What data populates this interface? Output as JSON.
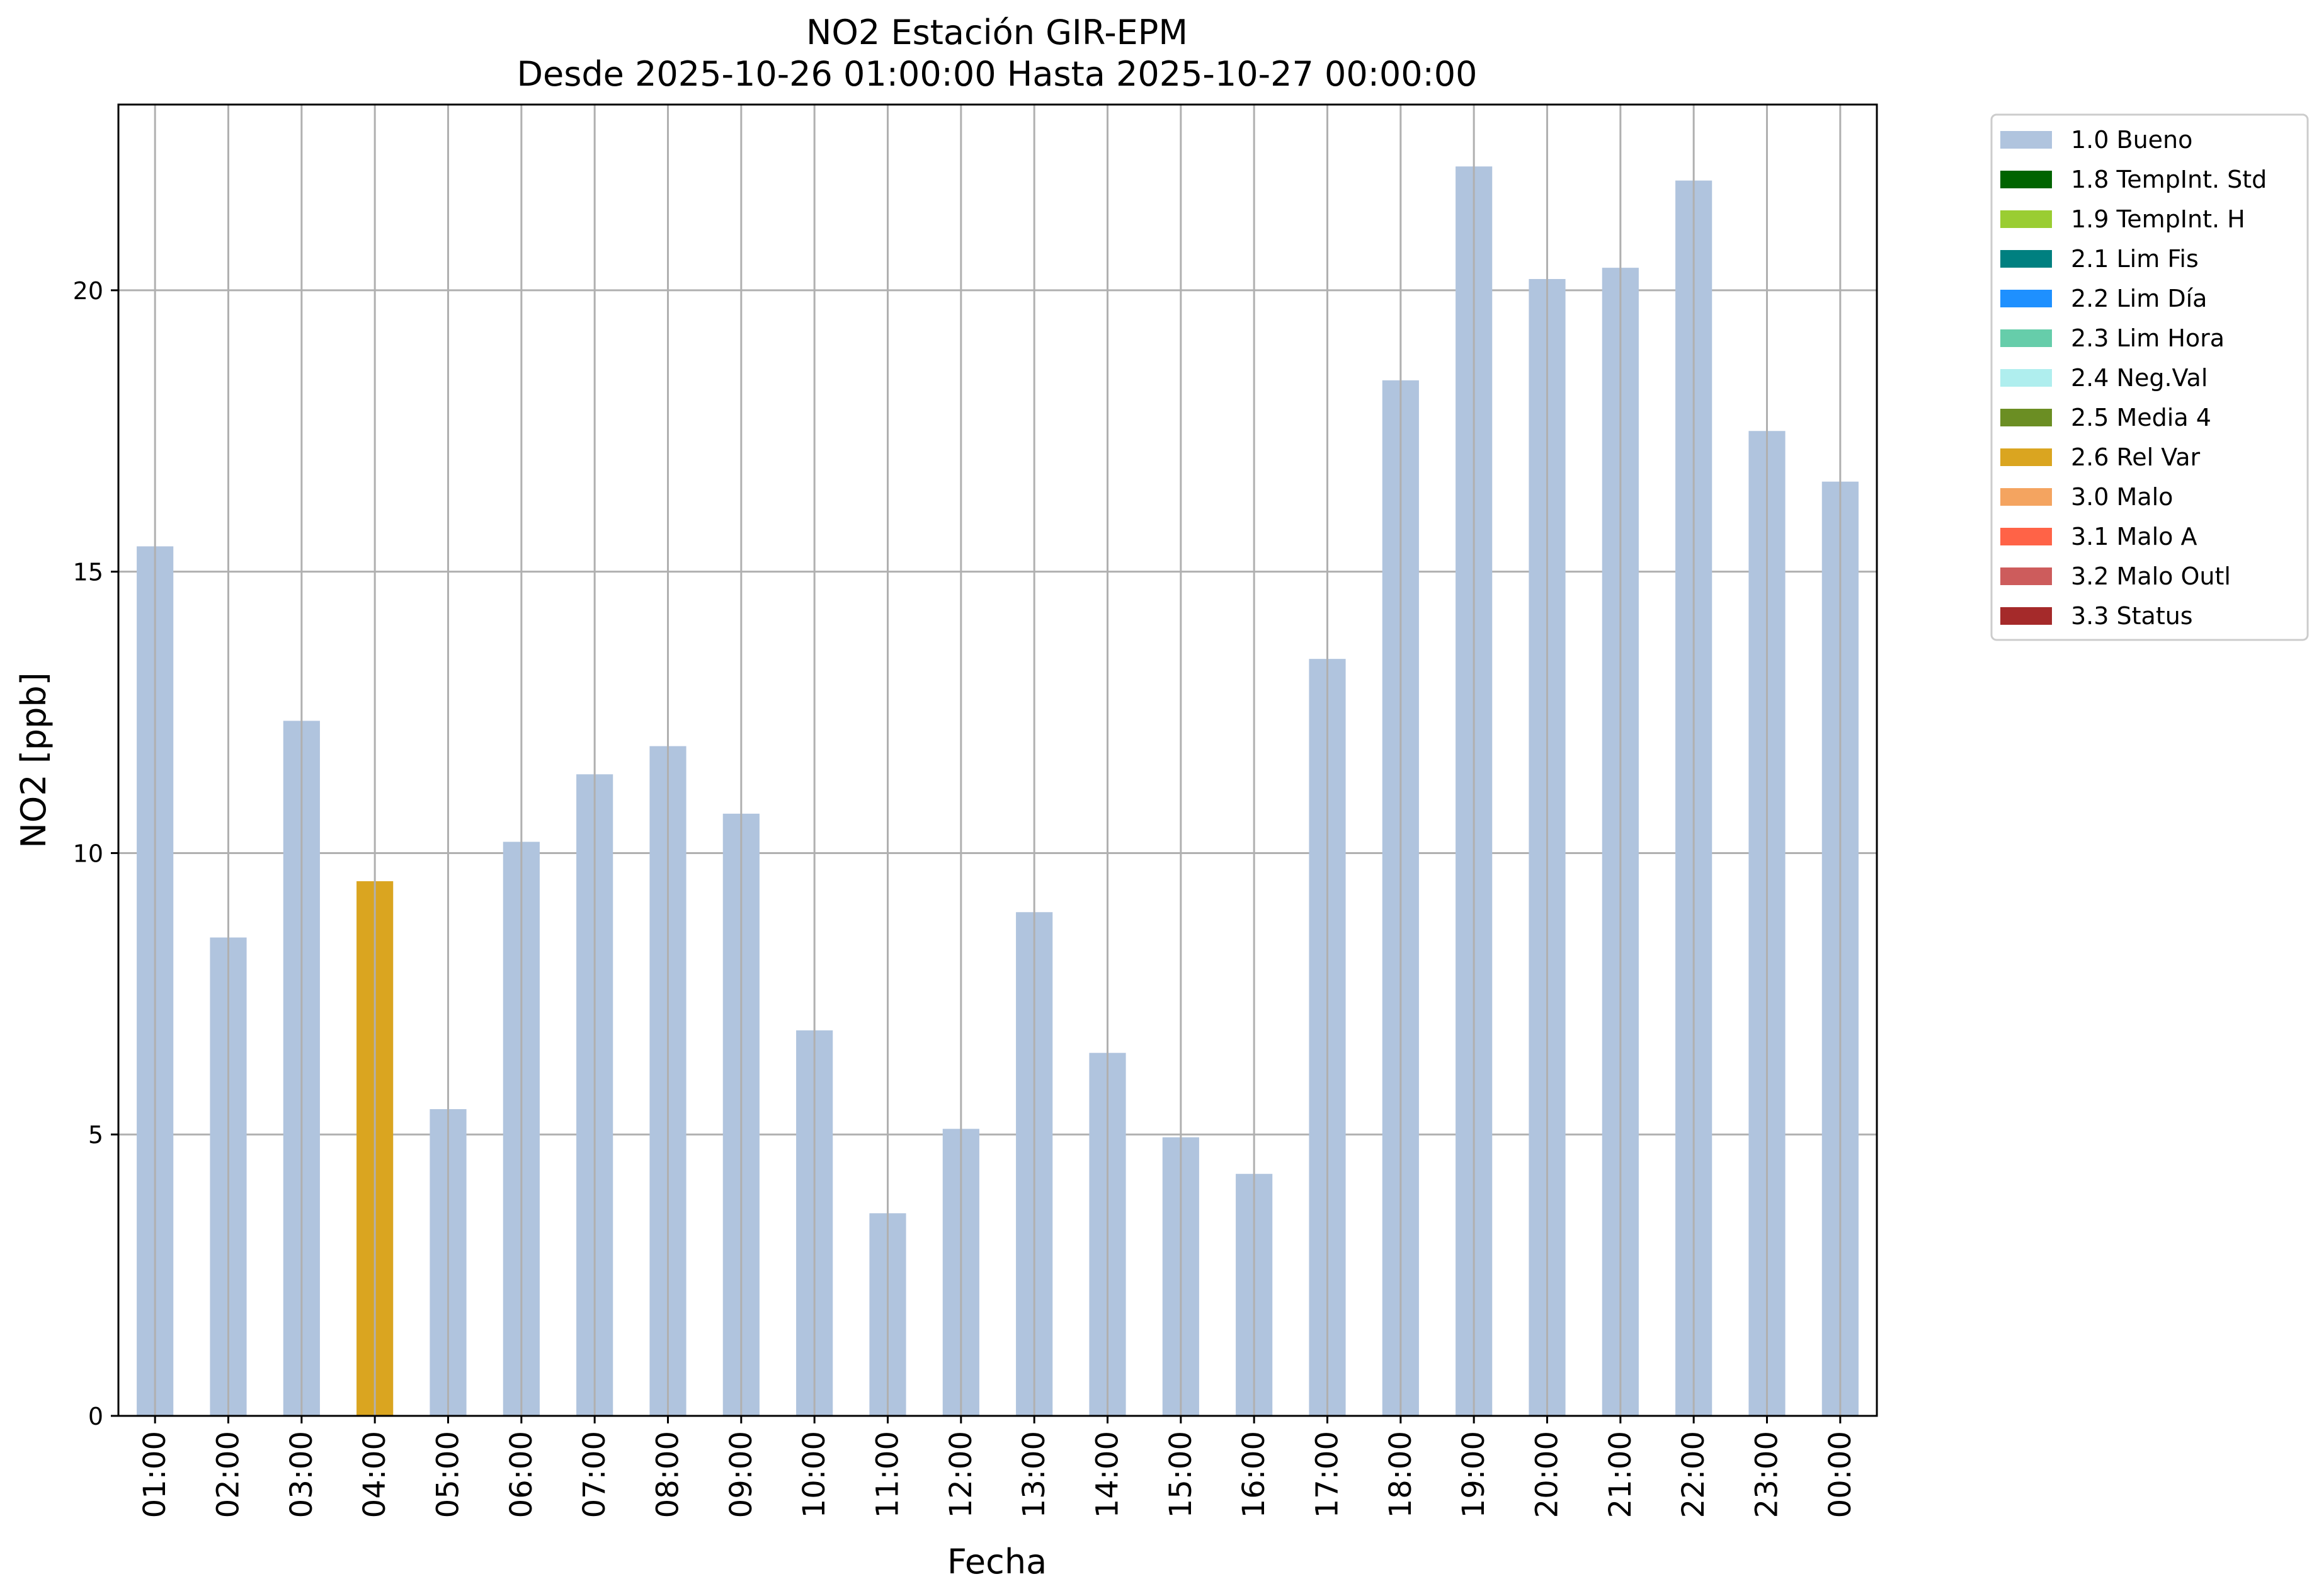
{
  "chart_data": {
    "type": "bar",
    "title": "NO2 Estación GIR-EPM",
    "subtitle": "Desde 2025-10-26 01:00:00 Hasta 2025-10-27 00:00:00",
    "xlabel": "Fecha",
    "ylabel": "NO2 [ppb]",
    "ylim": [
      0,
      23.3
    ],
    "yticks": [
      0,
      5,
      10,
      15,
      20
    ],
    "grid": true,
    "legend_position": "outside-top-right",
    "categories": [
      "01:00",
      "02:00",
      "03:00",
      "04:00",
      "05:00",
      "06:00",
      "07:00",
      "08:00",
      "09:00",
      "10:00",
      "11:00",
      "12:00",
      "13:00",
      "14:00",
      "15:00",
      "16:00",
      "17:00",
      "18:00",
      "19:00",
      "20:00",
      "21:00",
      "22:00",
      "23:00",
      "00:00"
    ],
    "values": [
      15.45,
      8.5,
      12.35,
      9.5,
      5.45,
      10.2,
      11.4,
      11.9,
      10.7,
      6.85,
      3.6,
      5.1,
      8.95,
      6.45,
      4.95,
      4.3,
      13.45,
      18.4,
      22.2,
      20.2,
      20.4,
      21.95,
      17.5,
      16.6
    ],
    "flags": [
      "1.0 Bueno",
      "1.0 Bueno",
      "1.0 Bueno",
      "2.6 Rel Var",
      "1.0 Bueno",
      "1.0 Bueno",
      "1.0 Bueno",
      "1.0 Bueno",
      "1.0 Bueno",
      "1.0 Bueno",
      "1.0 Bueno",
      "1.0 Bueno",
      "1.0 Bueno",
      "1.0 Bueno",
      "1.0 Bueno",
      "1.0 Bueno",
      "1.0 Bueno",
      "1.0 Bueno",
      "1.0 Bueno",
      "1.0 Bueno",
      "1.0 Bueno",
      "1.0 Bueno",
      "1.0 Bueno",
      "1.0 Bueno"
    ],
    "legend": [
      {
        "label": "1.0 Bueno",
        "color": "#b0c4de"
      },
      {
        "label": "1.8 TempInt. Std",
        "color": "#006400"
      },
      {
        "label": "1.9 TempInt. H",
        "color": "#9acd32"
      },
      {
        "label": "2.1 Lim Fis",
        "color": "#008080"
      },
      {
        "label": "2.2 Lim Día",
        "color": "#1e90ff"
      },
      {
        "label": "2.3 Lim Hora",
        "color": "#66cdaa"
      },
      {
        "label": "2.4 Neg.Val",
        "color": "#afeeee"
      },
      {
        "label": "2.5 Media 4",
        "color": "#6b8e23"
      },
      {
        "label": "2.6 Rel Var",
        "color": "#daa520"
      },
      {
        "label": "3.0 Malo",
        "color": "#f4a460"
      },
      {
        "label": "3.1 Malo A",
        "color": "#ff6347"
      },
      {
        "label": "3.2 Malo Outl",
        "color": "#cd5c5c"
      },
      {
        "label": "3.3 Status",
        "color": "#a52a2a"
      }
    ],
    "grid_color": "#b0b0b0"
  }
}
